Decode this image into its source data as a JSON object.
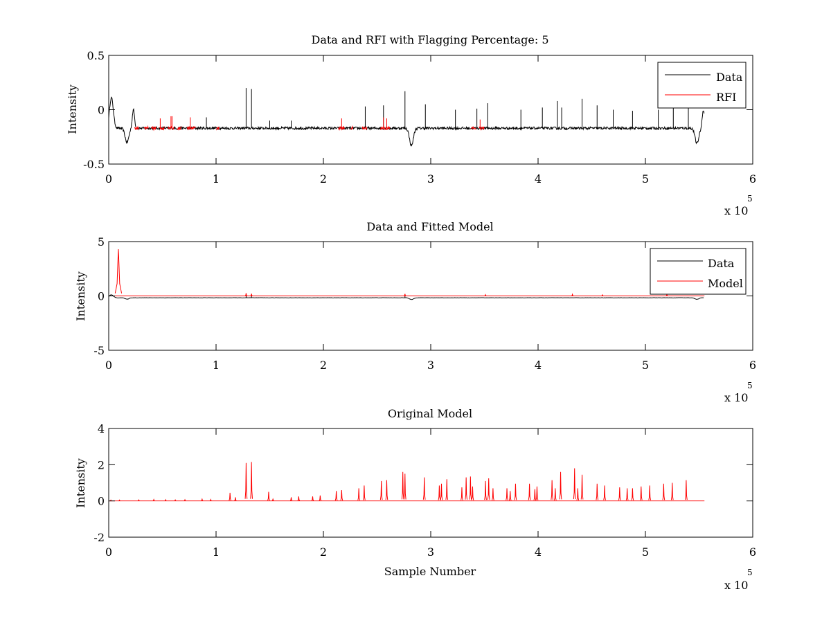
{
  "chart_data": [
    {
      "type": "line",
      "title": "Data and RFI with Flagging Percentage: 5",
      "xlabel": "",
      "ylabel": "Intensity",
      "xlim": [
        0,
        600000
      ],
      "ylim": [
        -0.5,
        0.5
      ],
      "x_ticks": [
        0,
        1,
        2,
        3,
        4,
        5,
        6
      ],
      "y_ticks": [
        0.5,
        0,
        -0.5
      ],
      "y_tick_labels": [
        "0.5",
        "0",
        "-0.5"
      ],
      "x_exponent_label": "x 10",
      "x_exponent": "5",
      "grid": false,
      "legend_position": "top-right",
      "series": [
        {
          "name": "Data",
          "color": "#000000",
          "baseline": -0.17,
          "noise": 0.012,
          "x_end": 555000,
          "features": [
            {
              "x": 2500,
              "y": 0.11,
              "w": 2500
            },
            {
              "x": 17000,
              "y": -0.3,
              "w": 2500
            },
            {
              "x": 23000,
              "y": 0.0,
              "w": 1500
            },
            {
              "x": 282000,
              "y": -0.33,
              "w": 2500
            },
            {
              "x": 548000,
              "y": -0.31,
              "w": 2500
            },
            {
              "x": 554000,
              "y": 0.0,
              "w": 1500
            }
          ],
          "spikes": [
            {
              "x": 128000,
              "y": 0.2
            },
            {
              "x": 133000,
              "y": 0.19
            },
            {
              "x": 239000,
              "y": 0.03
            },
            {
              "x": 256000,
              "y": 0.04
            },
            {
              "x": 276000,
              "y": 0.17
            },
            {
              "x": 295000,
              "y": 0.05
            },
            {
              "x": 323000,
              "y": 0.0
            },
            {
              "x": 343000,
              "y": 0.01
            },
            {
              "x": 353000,
              "y": 0.06
            },
            {
              "x": 384000,
              "y": 0.0
            },
            {
              "x": 404000,
              "y": 0.02
            },
            {
              "x": 418000,
              "y": 0.08
            },
            {
              "x": 422000,
              "y": 0.02
            },
            {
              "x": 441000,
              "y": 0.1
            },
            {
              "x": 455000,
              "y": 0.04
            },
            {
              "x": 470000,
              "y": 0.0
            },
            {
              "x": 488000,
              "y": -0.01
            },
            {
              "x": 512000,
              "y": 0.0
            },
            {
              "x": 526000,
              "y": 0.02
            },
            {
              "x": 540000,
              "y": 0.02
            },
            {
              "x": 91000,
              "y": -0.07
            },
            {
              "x": 150000,
              "y": -0.1
            },
            {
              "x": 170000,
              "y": -0.1
            }
          ]
        },
        {
          "name": "RFI",
          "color": "#ff0000",
          "segments": [
            [
              24000,
              28000
            ],
            [
              33000,
              37000
            ],
            [
              40000,
              44000
            ],
            [
              47000,
              52000
            ],
            [
              55000,
              61000
            ],
            [
              64000,
              68000
            ],
            [
              73000,
              81000
            ],
            [
              100000,
              103000
            ],
            [
              214000,
              220000
            ],
            [
              225000,
              228000
            ],
            [
              236000,
              241000
            ],
            [
              253000,
              262000
            ],
            [
              338000,
              342000
            ],
            [
              345000,
              350000
            ]
          ],
          "peaks": [
            {
              "x": 48000,
              "y": -0.08
            },
            {
              "x": 58000,
              "y": -0.06
            },
            {
              "x": 59000,
              "y": -0.06
            },
            {
              "x": 76000,
              "y": -0.07
            },
            {
              "x": 217000,
              "y": -0.08
            },
            {
              "x": 256000,
              "y": -0.07
            },
            {
              "x": 259000,
              "y": -0.08
            },
            {
              "x": 346000,
              "y": -0.09
            }
          ]
        }
      ]
    },
    {
      "type": "line",
      "title": "Data and Fitted Model",
      "xlabel": "",
      "ylabel": "Intensity",
      "xlim": [
        0,
        600000
      ],
      "ylim": [
        -5,
        5
      ],
      "x_ticks": [
        0,
        1,
        2,
        3,
        4,
        5,
        6
      ],
      "y_ticks": [
        5,
        0,
        -5
      ],
      "y_tick_labels": [
        "5",
        "0",
        "-5"
      ],
      "x_exponent_label": "x 10",
      "x_exponent": "5",
      "grid": false,
      "legend_position": "top-right",
      "series": [
        {
          "name": "Data",
          "color": "#000000",
          "baseline": -0.17,
          "noise": 0.012,
          "x_end": 555000,
          "features": [
            {
              "x": 2500,
              "y": 0.11,
              "w": 2500
            },
            {
              "x": 17000,
              "y": -0.3,
              "w": 2500
            },
            {
              "x": 282000,
              "y": -0.33,
              "w": 2500
            },
            {
              "x": 548000,
              "y": -0.31,
              "w": 2500
            }
          ],
          "spikes": [
            {
              "x": 128000,
              "y": 0.2
            },
            {
              "x": 133000,
              "y": 0.19
            },
            {
              "x": 276000,
              "y": 0.17
            }
          ]
        },
        {
          "name": "Model",
          "color": "#ff0000",
          "baseline": 0.0,
          "x_end": 555000,
          "peaks": [
            {
              "x": 9000,
              "y": 4.3,
              "w": 1200
            },
            {
              "x": 128000,
              "y": 0.25,
              "w": 300
            },
            {
              "x": 133000,
              "y": 0.2,
              "w": 300
            },
            {
              "x": 276000,
              "y": 0.18,
              "w": 300
            },
            {
              "x": 351000,
              "y": 0.12,
              "w": 300
            },
            {
              "x": 432000,
              "y": 0.15,
              "w": 300
            },
            {
              "x": 460000,
              "y": 0.1,
              "w": 300
            },
            {
              "x": 520000,
              "y": 0.12,
              "w": 300
            }
          ]
        }
      ]
    },
    {
      "type": "line",
      "title": "Original Model",
      "xlabel": "Sample Number",
      "ylabel": "Intensity",
      "xlim": [
        0,
        600000
      ],
      "ylim": [
        -2,
        4
      ],
      "x_ticks": [
        0,
        1,
        2,
        3,
        4,
        5,
        6
      ],
      "y_ticks": [
        4,
        2,
        0,
        -2
      ],
      "y_tick_labels": [
        "4",
        "2",
        "0",
        "-2"
      ],
      "x_exponent_label": "x 10",
      "x_exponent": "5",
      "grid": false,
      "legend_position": "none",
      "series": [
        {
          "color": "#ff0000",
          "baseline": 0.0,
          "x_end": 555000,
          "peaks": [
            {
              "x": 2000,
              "y": 0.05
            },
            {
              "x": 10000,
              "y": 0.05
            },
            {
              "x": 28000,
              "y": 0.06
            },
            {
              "x": 42000,
              "y": 0.08
            },
            {
              "x": 53000,
              "y": 0.07
            },
            {
              "x": 62000,
              "y": 0.06
            },
            {
              "x": 71000,
              "y": 0.07
            },
            {
              "x": 87000,
              "y": 0.1
            },
            {
              "x": 95000,
              "y": 0.08
            },
            {
              "x": 113000,
              "y": 0.45
            },
            {
              "x": 118000,
              "y": 0.2
            },
            {
              "x": 128000,
              "y": 2.1
            },
            {
              "x": 133000,
              "y": 2.15
            },
            {
              "x": 149000,
              "y": 0.5
            },
            {
              "x": 153000,
              "y": 0.1
            },
            {
              "x": 170000,
              "y": 0.2
            },
            {
              "x": 177000,
              "y": 0.25
            },
            {
              "x": 190000,
              "y": 0.25
            },
            {
              "x": 197000,
              "y": 0.3
            },
            {
              "x": 212000,
              "y": 0.55
            },
            {
              "x": 217000,
              "y": 0.6
            },
            {
              "x": 233000,
              "y": 0.7
            },
            {
              "x": 238000,
              "y": 0.85
            },
            {
              "x": 254000,
              "y": 1.1
            },
            {
              "x": 259000,
              "y": 1.15
            },
            {
              "x": 274000,
              "y": 1.6
            },
            {
              "x": 276000,
              "y": 1.5
            },
            {
              "x": 294000,
              "y": 1.3
            },
            {
              "x": 308000,
              "y": 0.85
            },
            {
              "x": 310000,
              "y": 0.95
            },
            {
              "x": 315000,
              "y": 1.2
            },
            {
              "x": 329000,
              "y": 0.75
            },
            {
              "x": 333000,
              "y": 1.3
            },
            {
              "x": 337000,
              "y": 1.35
            },
            {
              "x": 339000,
              "y": 0.8
            },
            {
              "x": 351000,
              "y": 1.1
            },
            {
              "x": 354000,
              "y": 1.25
            },
            {
              "x": 358000,
              "y": 0.7
            },
            {
              "x": 371000,
              "y": 0.7
            },
            {
              "x": 374000,
              "y": 0.55
            },
            {
              "x": 379000,
              "y": 0.95
            },
            {
              "x": 392000,
              "y": 0.95
            },
            {
              "x": 397000,
              "y": 0.65
            },
            {
              "x": 399000,
              "y": 0.8
            },
            {
              "x": 413000,
              "y": 1.15
            },
            {
              "x": 416000,
              "y": 0.7
            },
            {
              "x": 421000,
              "y": 1.6
            },
            {
              "x": 434000,
              "y": 1.8
            },
            {
              "x": 437000,
              "y": 0.7
            },
            {
              "x": 441000,
              "y": 1.45
            },
            {
              "x": 455000,
              "y": 0.95
            },
            {
              "x": 462000,
              "y": 0.85
            },
            {
              "x": 476000,
              "y": 0.75
            },
            {
              "x": 483000,
              "y": 0.7
            },
            {
              "x": 488000,
              "y": 0.7
            },
            {
              "x": 496000,
              "y": 0.8
            },
            {
              "x": 504000,
              "y": 0.85
            },
            {
              "x": 517000,
              "y": 0.95
            },
            {
              "x": 525000,
              "y": 1.0
            },
            {
              "x": 538000,
              "y": 1.15
            }
          ]
        }
      ]
    }
  ]
}
